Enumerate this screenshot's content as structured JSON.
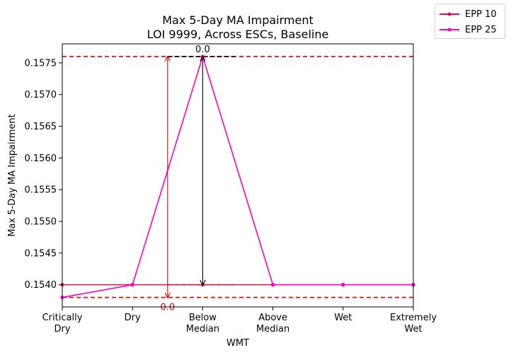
{
  "chart_data": {
    "type": "line",
    "title": "Max 5-Day MA Impairment",
    "subtitle": "LOI 9999, Across ESCs, Baseline",
    "xlabel": "WMT",
    "ylabel": "Max 5-Day MA Impairment",
    "categories": [
      "Critically\nDry",
      "Dry",
      "Below\nMedian",
      "Above\nMedian",
      "Wet",
      "Extremely\nWet"
    ],
    "ylim": [
      0.15365,
      0.1578
    ],
    "yticks": [
      "0.1540",
      "0.1545",
      "0.1550",
      "0.1555",
      "0.1560",
      "0.1565",
      "0.1570",
      "0.1575"
    ],
    "series": [
      {
        "name": "EPP 10",
        "color": "#e8103f",
        "values": [
          0.154,
          0.154,
          0.154,
          0.154,
          0.154,
          0.154
        ]
      },
      {
        "name": "EPP 25",
        "color": "#ff00c0",
        "values": [
          0.1538,
          0.154,
          0.1576,
          0.154,
          0.154,
          0.154
        ]
      }
    ],
    "reference_lines": [
      {
        "value": 0.1576,
        "color": "#e00000",
        "style": "dashed"
      },
      {
        "value": 0.1538,
        "color": "#e00000",
        "style": "dashed"
      }
    ],
    "annotations": [
      {
        "label": "0.0",
        "color": "#e00000",
        "x_between": [
          "Dry",
          "Below\nMedian"
        ],
        "from": 0.1576,
        "to": 0.1538
      },
      {
        "label": "0.0",
        "color": "#000000",
        "x": "Below\nMedian",
        "from": 0.1576,
        "to": 0.154
      }
    ],
    "grid": false,
    "legend_position": "outside top-right"
  }
}
